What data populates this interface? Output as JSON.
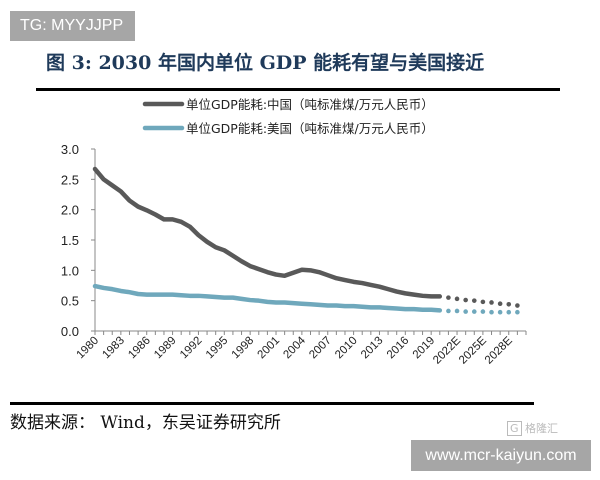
{
  "watermark_top": "TG: MYYJJPP",
  "figure_title": "图 3:  2030 年国内单位 GDP 能耗有望与美国接近",
  "source_text": "数据来源： Wind，东吴证券研究所",
  "watermark_bottom": "www.mcr-kaiyun.com",
  "logo_text": "格隆汇",
  "chart_data": {
    "type": "line",
    "title": "",
    "xlabel": "",
    "ylabel": "",
    "ylim": [
      0,
      3.0
    ],
    "xlim": [
      1980,
      2030
    ],
    "yticks": [
      "0.0",
      "0.5",
      "1.0",
      "1.5",
      "2.0",
      "2.5",
      "3.0"
    ],
    "xtick_labels": [
      "1980",
      "1983",
      "1986",
      "1989",
      "1992",
      "1995",
      "1998",
      "2001",
      "2004",
      "2007",
      "2010",
      "2013",
      "2016",
      "2019",
      "2022E",
      "2025E",
      "2028E"
    ],
    "legend_placement": "top-center",
    "grid": false,
    "series": [
      {
        "name": "单位GDP能耗:中国（吨标准煤/万元人民币）",
        "color": "#595959",
        "actual_years": [
          1980,
          2020
        ],
        "actual": [
          2.67,
          2.5,
          2.4,
          2.3,
          2.15,
          2.05,
          1.99,
          1.92,
          1.84,
          1.84,
          1.8,
          1.72,
          1.58,
          1.47,
          1.38,
          1.33,
          1.24,
          1.15,
          1.07,
          1.02,
          0.97,
          0.93,
          0.91,
          0.96,
          1.01,
          1.0,
          0.97,
          0.92,
          0.87,
          0.84,
          0.81,
          0.79,
          0.76,
          0.73,
          0.69,
          0.65,
          0.62,
          0.6,
          0.58,
          0.57,
          0.57
        ],
        "forecast_years": [
          2021,
          2029
        ],
        "forecast": [
          0.55,
          0.53,
          0.51,
          0.5,
          0.48,
          0.47,
          0.45,
          0.44,
          0.42
        ]
      },
      {
        "name": "单位GDP能耗:美国（吨标准煤/万元人民币）",
        "color": "#6fa8bc",
        "actual_years": [
          1980,
          2020
        ],
        "actual": [
          0.74,
          0.71,
          0.69,
          0.66,
          0.64,
          0.61,
          0.6,
          0.6,
          0.6,
          0.6,
          0.59,
          0.58,
          0.58,
          0.57,
          0.56,
          0.55,
          0.55,
          0.53,
          0.51,
          0.5,
          0.48,
          0.47,
          0.47,
          0.46,
          0.45,
          0.44,
          0.43,
          0.42,
          0.42,
          0.41,
          0.41,
          0.4,
          0.39,
          0.39,
          0.38,
          0.37,
          0.36,
          0.36,
          0.35,
          0.35,
          0.34
        ],
        "forecast_years": [
          2021,
          2029
        ],
        "forecast": [
          0.33,
          0.33,
          0.32,
          0.32,
          0.32,
          0.31,
          0.31,
          0.31,
          0.31
        ]
      }
    ]
  }
}
